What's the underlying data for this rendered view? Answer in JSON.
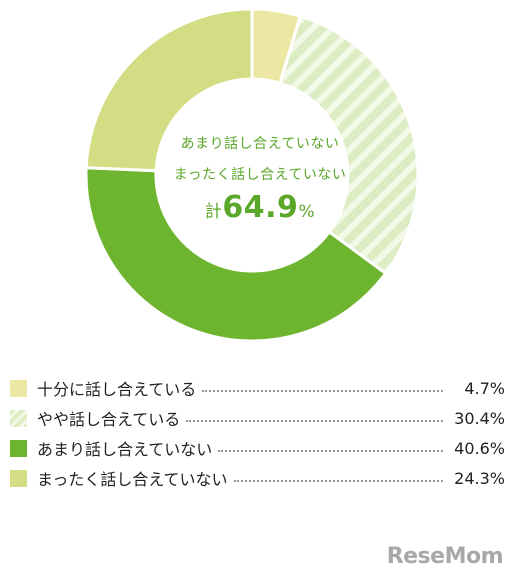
{
  "chart_data": {
    "type": "pie",
    "variant": "donut",
    "categories": [
      "十分に話し合えている",
      "やや話し合えている",
      "あまり話し合えていない",
      "まったく話し合えていない"
    ],
    "values": [
      4.7,
      30.4,
      40.6,
      24.3
    ],
    "value_labels": [
      "4.7%",
      "30.4%",
      "40.6%",
      "24.3%"
    ],
    "colors": [
      "#ece8a3",
      "#dcecc3",
      "#6db52e",
      "#d3dd83"
    ],
    "patterns": [
      "solid",
      "diagonal-stripes",
      "solid",
      "solid"
    ],
    "stripe_color": "#ffffff",
    "center_annotation": {
      "line1": "あまり話し合えていない",
      "line2": "まったく話し合えていない",
      "total_prefix": "計",
      "total_value": "64.9",
      "total_suffix": "%",
      "color": "#5aa72a"
    },
    "legend_position": "bottom"
  },
  "watermark": "ReseMom"
}
